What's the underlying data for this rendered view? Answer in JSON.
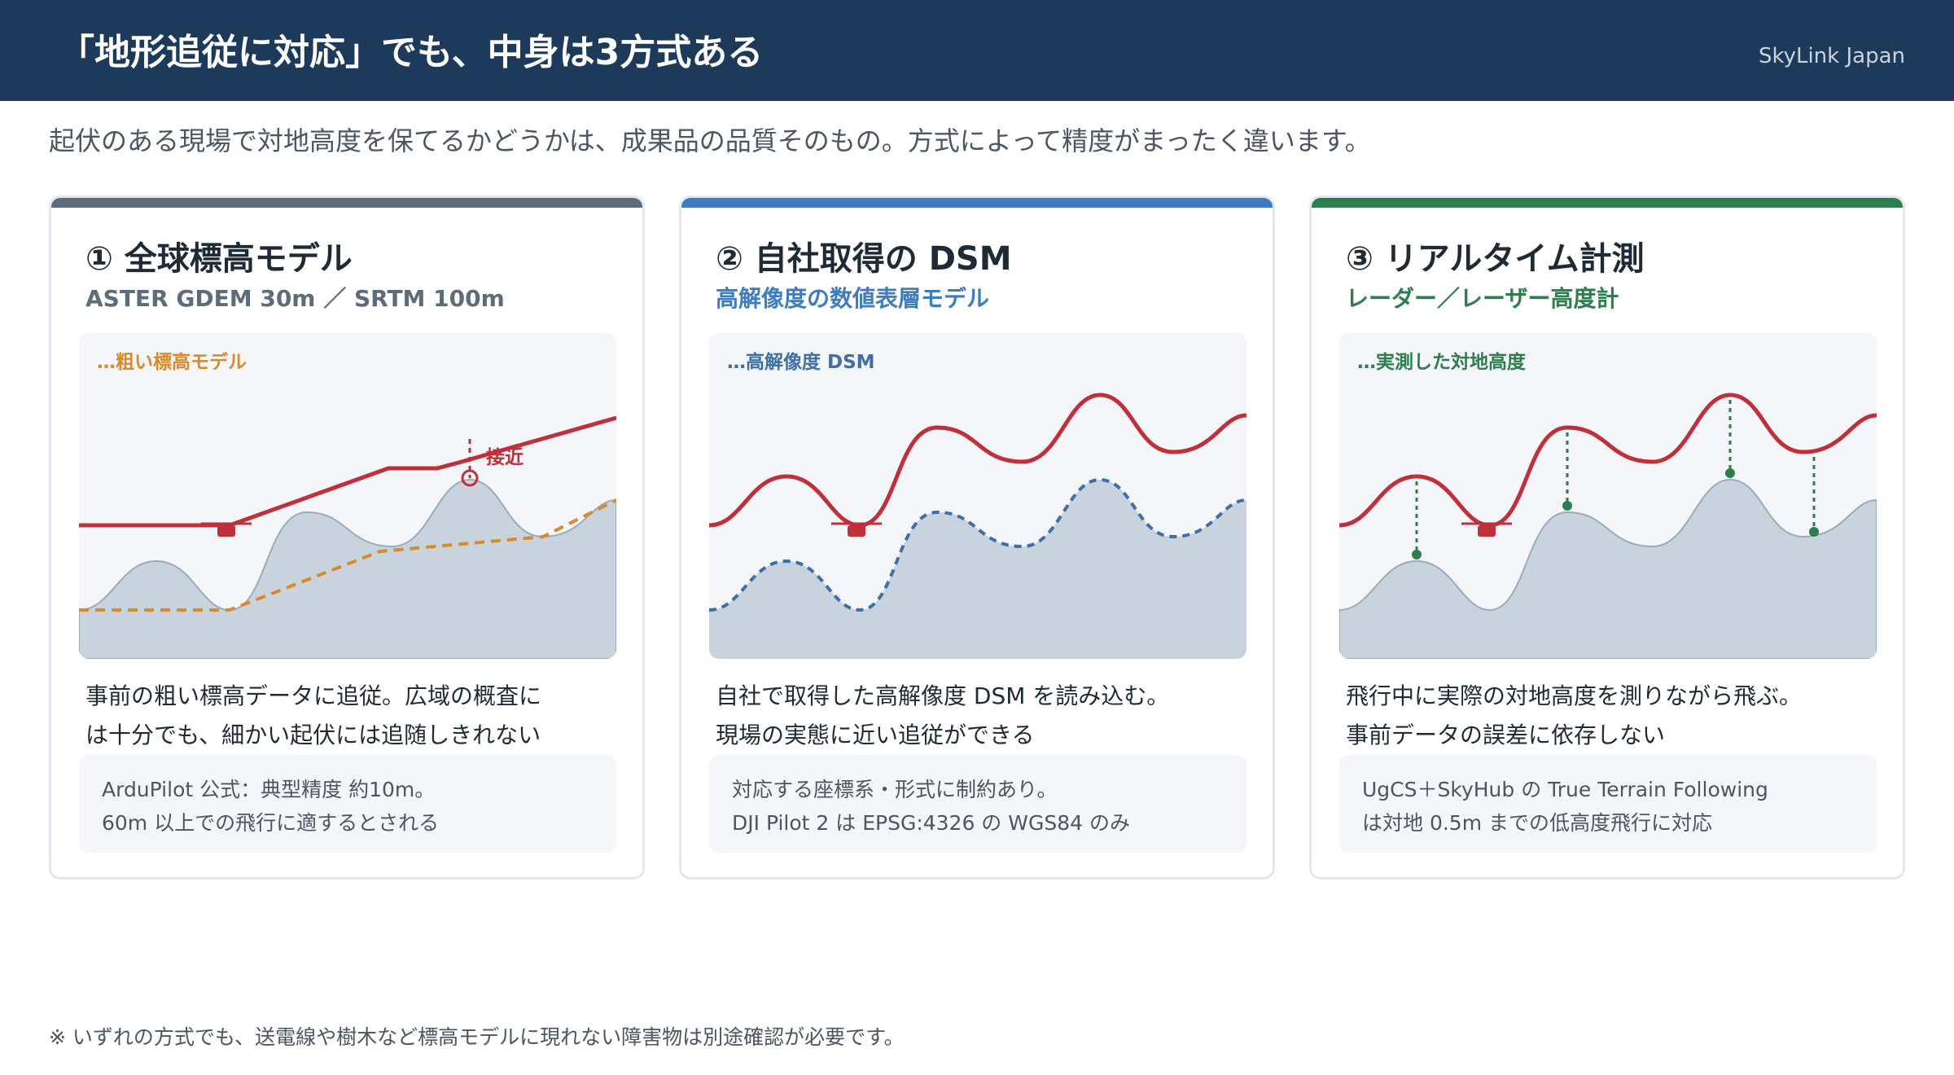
{
  "header": {
    "title": "「地形追従に対応」でも、中身は3方式ある",
    "brand": "SkyLink Japan"
  },
  "lead": "起伏のある現場で対地高度を保てるかどうかは、成果品の品質そのもの。方式によって精度がまったく違います。",
  "cards": [
    {
      "title": "① 全球標高モデル",
      "subtitle": "ASTER GDEM 30m ／ SRTM 100m",
      "legend": "…粗い標高モデル",
      "callout": "接近",
      "desc": [
        "事前の粗い標高データに追従。広域の概査に",
        "は十分でも、細かい起伏には追随しきれない"
      ],
      "note": [
        "ArduPilot 公式：典型精度 約10m。",
        "60m 以上での飛行に適するとされる"
      ]
    },
    {
      "title": "② 自社取得の DSM",
      "subtitle": "高解像度の数値表層モデル",
      "legend": "…高解像度 DSM",
      "desc": [
        "自社で取得した高解像度 DSM を読み込む。",
        "現場の実態に近い追従ができる"
      ],
      "note": [
        "対応する座標系・形式に制約あり。",
        "DJI Pilot 2 は EPSG:4326 の WGS84 のみ"
      ]
    },
    {
      "title": "③ リアルタイム計測",
      "subtitle": "レーダー／レーザー高度計",
      "legend": "…実測した対地高度",
      "desc": [
        "飛行中に実際の対地高度を測りながら飛ぶ。",
        "事前データの誤差に依存しない"
      ],
      "note": [
        "UgCS＋SkyHub の True Terrain Following",
        "は対地 0.5m までの低高度飛行に対応"
      ]
    }
  ],
  "footnote": "※ いずれの方式でも、送電線や樹木など標高モデルに現れない障害物は別途確認が必要です。",
  "colors": {
    "header_bg": "#1e3a5a",
    "bar_card1": "#5d6b7a",
    "bar_card2": "#3d7cc0",
    "bar_card3": "#2e7d4f",
    "flight_path": "#c0303a",
    "terrain_fill": "#c9d3de",
    "coarse_model": "#d98a2b",
    "dsm_line": "#3d6fa8",
    "measure_line": "#2e7d4f"
  },
  "icons": [
    "drone-icon",
    "proximity-marker-icon"
  ]
}
